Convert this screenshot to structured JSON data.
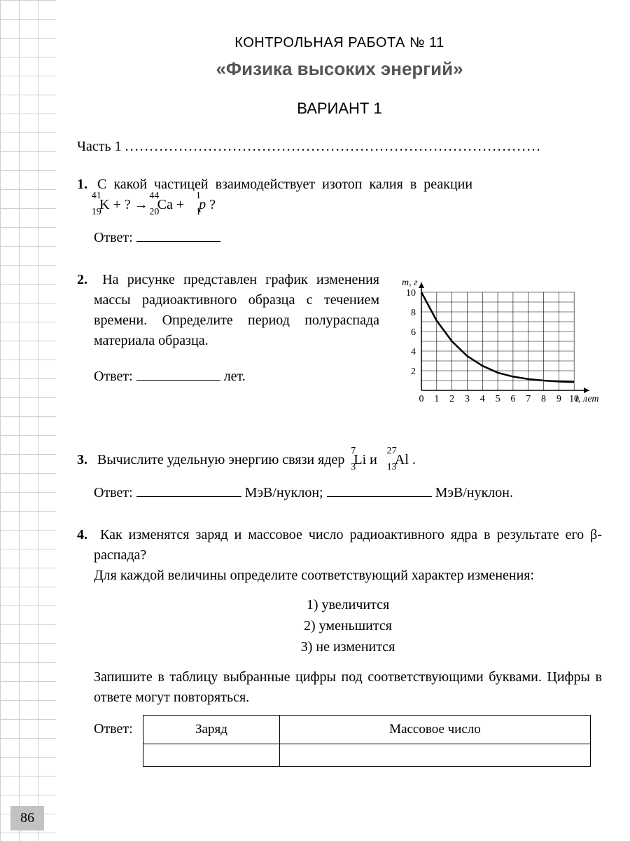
{
  "header": {
    "line1": "КОНТРОЛЬНАЯ РАБОТА № 11",
    "line2": "«Физика высоких энергий»",
    "variant": "ВАРИАНТ 1"
  },
  "part_label": "Часть 1",
  "problems": {
    "p1": {
      "num": "1.",
      "text_lead": "С какой частицей взаимодействует изотоп калия в реакции ",
      "formula": {
        "k_mass": "41",
        "k_atomic": "19",
        "k_sym": "K",
        "plus": " + ? → ",
        "ca_mass": "44",
        "ca_atomic": "20",
        "ca_sym": "Ca",
        "p_mass": "1",
        "p_atomic": "1",
        "p_sym": "p",
        "q": "?"
      },
      "answer_label": "Ответ:"
    },
    "p2": {
      "num": "2.",
      "text": "На рисунке представлен график изменения массы радиоактивного образца с течением времени. Определите период полураспада материала образца.",
      "answer_label": "Ответ:",
      "unit": "лет."
    },
    "p3": {
      "num": "3.",
      "text_a": "Вычислите удельную энергию связи ядер ",
      "li_mass": "7",
      "li_atomic": "3",
      "li_sym": "Li",
      "and": " и ",
      "al_mass": "27",
      "al_atomic": "13",
      "al_sym": "Al",
      "dot": ".",
      "answer_label": "Ответ:",
      "unit1": "МэВ/нуклон;",
      "unit2": "МэВ/нуклон."
    },
    "p4": {
      "num": "4.",
      "q1": "Как изменятся заряд и массовое число радиоактивного ядра в результате его β-распада?",
      "q2": "Для каждой величины определите соответствующий характер изменения:",
      "opt1": "1) увеличится",
      "opt2": "2) уменьшится",
      "opt3": "3) не изменится",
      "q3": "Запишите в таблицу выбранные цифры под соответствующими буквами. Цифры в ответе могут повторяться.",
      "answer_label": "Ответ:",
      "col1": "Заряд",
      "col2": "Массовое число"
    }
  },
  "chart": {
    "type": "line",
    "y_label": "m, г",
    "x_label": "t, лет",
    "x_ticks": [
      0,
      1,
      2,
      3,
      4,
      5,
      6,
      7,
      8,
      9,
      10
    ],
    "y_ticks": [
      2,
      4,
      6,
      8,
      10
    ],
    "xlim": [
      0,
      11
    ],
    "ylim": [
      0,
      11
    ],
    "curve": [
      [
        0,
        10
      ],
      [
        1,
        7.1
      ],
      [
        2,
        5
      ],
      [
        3,
        3.5
      ],
      [
        4,
        2.5
      ],
      [
        5,
        1.8
      ],
      [
        6,
        1.4
      ],
      [
        7,
        1.15
      ],
      [
        8,
        1.0
      ],
      [
        9,
        0.9
      ],
      [
        10,
        0.85
      ]
    ],
    "axis_color": "#000000",
    "grid_color": "#000000",
    "curve_color": "#000000",
    "curve_width": 2.5,
    "fontsize": 14,
    "background_color": "#ffffff"
  },
  "page_number": "86"
}
